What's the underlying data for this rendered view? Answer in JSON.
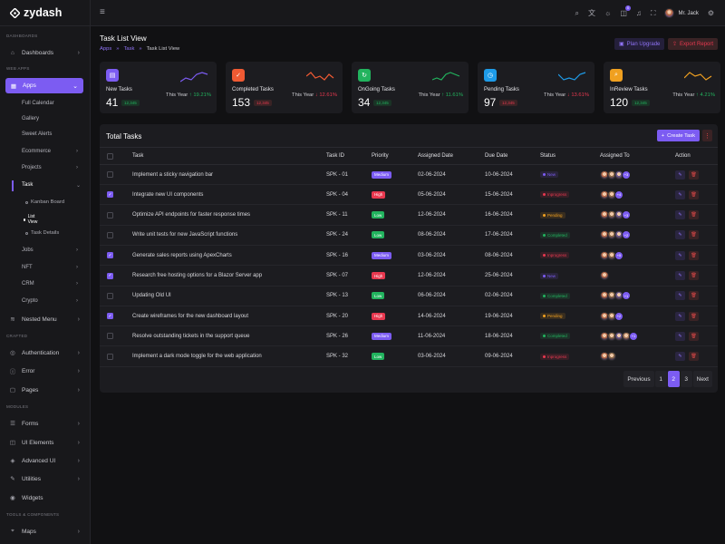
{
  "brand": {
    "name": "zydash"
  },
  "sidebar": {
    "sections": [
      "DASHBOARDS",
      "WEB APPS",
      "CRAFTED",
      "MODULES",
      "TOOLS & COMPONENTS"
    ],
    "dashboards": "Dashboards",
    "apps": "Apps",
    "apps_sub": [
      "Full Calendar",
      "Gallery",
      "Sweet Alerts",
      "Ecommerce",
      "Projects",
      "Task"
    ],
    "task_sub": [
      "Kanban Board",
      "List View",
      "Task Details"
    ],
    "apps_sub2": [
      "Jobs",
      "NFT",
      "CRM",
      "Crypto"
    ],
    "nested": "Nested Menu",
    "crafted": [
      "Authentication",
      "Error",
      "Pages"
    ],
    "modules": [
      "Forms",
      "UI Elements",
      "Advanced UI",
      "Utilities",
      "Widgets"
    ],
    "tools": [
      "Maps"
    ]
  },
  "header": {
    "user_name": "Mr. Jack",
    "cart_badge": "5"
  },
  "page": {
    "title": "Task List View",
    "breadcrumb": [
      "Apps",
      "Task",
      "Task List View"
    ],
    "plan_upgrade": "Plan Upgrade",
    "export_report": "Export Report"
  },
  "cards": [
    {
      "label": "New Tasks",
      "value": "41",
      "pill": "12,345",
      "period": "This Year",
      "change": "19.21%",
      "dir": "up",
      "color": "#7c5cf2",
      "icon": "file-icon"
    },
    {
      "label": "Completed Tasks",
      "value": "153",
      "pill": "12,345",
      "period": "This Year",
      "change": "12.61%",
      "dir": "down",
      "color": "#f05a33",
      "icon": "file-check-icon"
    },
    {
      "label": "OnGoing Tasks",
      "value": "34",
      "pill": "12,345",
      "period": "This Year",
      "change": "11.61%",
      "dir": "up",
      "color": "#22b35e",
      "icon": "file-sync-icon"
    },
    {
      "label": "Pending Tasks",
      "value": "97",
      "pill": "12,345",
      "period": "This Year",
      "change": "13.61%",
      "dir": "down",
      "color": "#1e9be8",
      "icon": "file-clock-icon"
    },
    {
      "label": "InReview Tasks",
      "value": "120",
      "pill": "12,345",
      "period": "This Year",
      "change": "4.21%",
      "dir": "up",
      "color": "#f0a020",
      "icon": "file-search-icon"
    }
  ],
  "table": {
    "title": "Total Tasks",
    "create_label": "Create Task",
    "headers": [
      "Task",
      "Task ID",
      "Priority",
      "Assigned Date",
      "Due Date",
      "Status",
      "Assigned To",
      "Action"
    ],
    "rows": [
      {
        "checked": false,
        "task": "Implement a sticky navigation bar",
        "id": "SPK - 01",
        "priority": "Medium",
        "assigned": "02-06-2024",
        "due": "10-06-2024",
        "status": "New",
        "avatars": 3,
        "more": "+3"
      },
      {
        "checked": true,
        "task": "Integrate new UI components",
        "id": "SPK - 04",
        "priority": "High",
        "assigned": "05-06-2024",
        "due": "15-06-2024",
        "status": "Inprogress",
        "avatars": 2,
        "more": "+4"
      },
      {
        "checked": false,
        "task": "Optimize API endpoints for faster response times",
        "id": "SPK - 11",
        "priority": "Low",
        "assigned": "12-06-2024",
        "due": "16-06-2024",
        "status": "Pending",
        "avatars": 3,
        "more": "+3"
      },
      {
        "checked": false,
        "task": "Write unit tests for new JavaScript functions",
        "id": "SPK - 24",
        "priority": "Low",
        "assigned": "08-06-2024",
        "due": "17-06-2024",
        "status": "Completed",
        "avatars": 3,
        "more": "+2"
      },
      {
        "checked": true,
        "task": "Generate sales reports using ApexCharts",
        "id": "SPK - 16",
        "priority": "Medium",
        "assigned": "03-06-2024",
        "due": "08-06-2024",
        "status": "Inprogress",
        "avatars": 2,
        "more": "+5"
      },
      {
        "checked": true,
        "task": "Research free hosting options for a Blazor Server app",
        "id": "SPK - 07",
        "priority": "High",
        "assigned": "12-06-2024",
        "due": "25-06-2024",
        "status": "New",
        "avatars": 1,
        "more": ""
      },
      {
        "checked": false,
        "task": "Updating Old UI",
        "id": "SPK - 13",
        "priority": "Low",
        "assigned": "06-06-2024",
        "due": "02-06-2024",
        "status": "Completed",
        "avatars": 3,
        "more": "+1"
      },
      {
        "checked": true,
        "task": "Create wireframes for the new dashboard layout",
        "id": "SPK - 20",
        "priority": "High",
        "assigned": "14-06-2024",
        "due": "19-06-2024",
        "status": "Pending",
        "avatars": 2,
        "more": "+2"
      },
      {
        "checked": false,
        "task": "Resolve outstanding tickets in the support queue",
        "id": "SPK - 26",
        "priority": "Medium",
        "assigned": "11-06-2024",
        "due": "18-06-2024",
        "status": "Completed",
        "avatars": 4,
        "more": "+1"
      },
      {
        "checked": false,
        "task": "Implement a dark mode toggle for the web application",
        "id": "SPK - 32",
        "priority": "Low",
        "assigned": "03-06-2024",
        "due": "09-06-2024",
        "status": "Inprogress",
        "avatars": 2,
        "more": ""
      }
    ]
  },
  "pagination": {
    "prev": "Previous",
    "pages": [
      "1",
      "2",
      "3"
    ],
    "current": "2",
    "next": "Next"
  },
  "colors": {
    "accent": "#7c5cf2",
    "priority": {
      "Medium": "#7c5cf2",
      "High": "#e8384f",
      "Low": "#22b35e"
    },
    "status": {
      "New": "#7c5cf2",
      "Inprogress": "#e8384f",
      "Pending": "#f0a020",
      "Completed": "#22b35e"
    }
  }
}
